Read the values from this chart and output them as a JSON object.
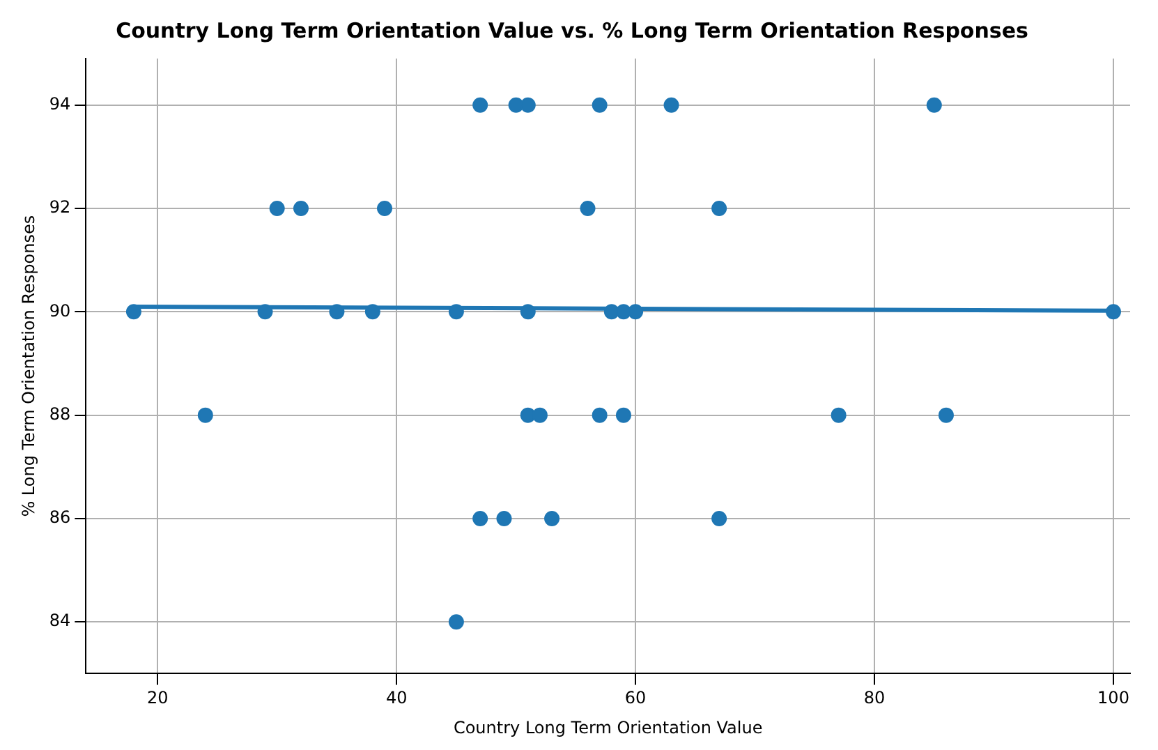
{
  "chart_data": {
    "type": "scatter",
    "title": "Country Long Term Orientation Value vs. % Long Term Orientation Responses",
    "xlabel": "Country Long Term Orientation Value",
    "ylabel": "% Long Term Orientation Responses",
    "xlim": [
      14,
      101.4
    ],
    "xticks": [
      20,
      40,
      60,
      80,
      100
    ],
    "ylim": [
      83,
      94.9
    ],
    "yticks": [
      84,
      86,
      88,
      90,
      92,
      94
    ],
    "grid": true,
    "series": [
      {
        "marker": "circle",
        "color": "#1f77b4",
        "x": [
          47,
          50,
          51,
          57,
          63,
          85,
          30,
          32,
          39,
          56,
          67,
          18,
          29,
          35,
          38,
          45,
          51,
          58,
          59,
          60,
          100,
          24,
          51,
          52,
          57,
          59,
          77,
          86,
          47,
          49,
          53,
          67,
          45
        ],
        "values": [
          94,
          94,
          94,
          94,
          94,
          94,
          92,
          92,
          92,
          92,
          92,
          90,
          90,
          90,
          90,
          90,
          90,
          90,
          90,
          90,
          90,
          88,
          88,
          88,
          88,
          88,
          88,
          88,
          86,
          86,
          86,
          86,
          84
        ]
      },
      {
        "type": "line",
        "marker": "none",
        "color": "#1f77b4",
        "x": [
          18,
          100
        ],
        "values": [
          90.1,
          90.02
        ]
      }
    ]
  }
}
